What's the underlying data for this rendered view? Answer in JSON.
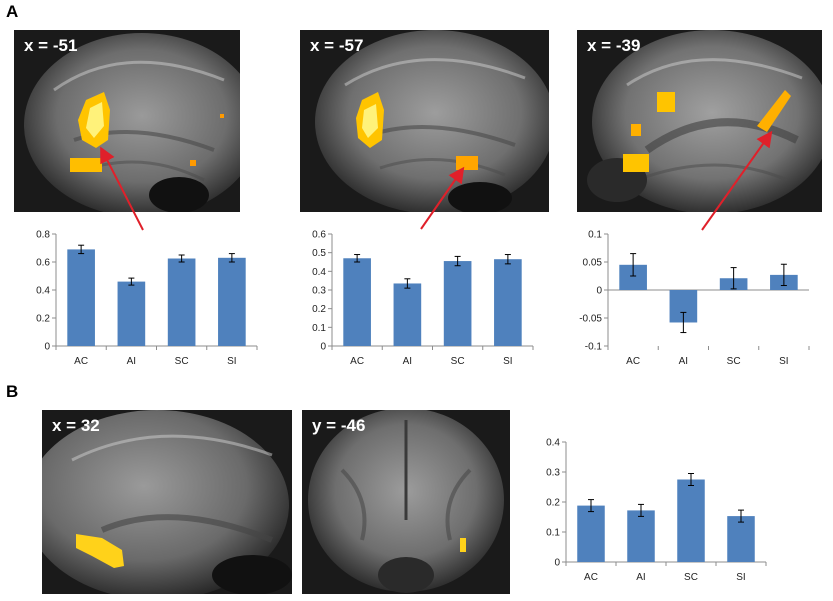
{
  "panels": {
    "a": {
      "letter": "A"
    },
    "b": {
      "letter": "B"
    }
  },
  "slices": [
    {
      "label": "x = -51"
    },
    {
      "label": "x = -57"
    },
    {
      "label": "x = -39"
    },
    {
      "label": "x = 32"
    },
    {
      "label": "y = -46"
    }
  ],
  "colors": {
    "bar": "#4f81bd",
    "arrow": "#e0202a",
    "activation": "#ffd21a"
  },
  "chart_data": [
    {
      "type": "bar",
      "categories": [
        "AC",
        "AI",
        "SC",
        "SI"
      ],
      "values": [
        0.69,
        0.46,
        0.625,
        0.63
      ],
      "errors": [
        0.03,
        0.025,
        0.025,
        0.03
      ],
      "ylim": [
        0,
        0.8
      ],
      "yticks": [
        "0",
        "0.2",
        "0.4",
        "0.6",
        "0.8"
      ],
      "ytick_values": [
        0,
        0.2,
        0.4,
        0.6,
        0.8
      ]
    },
    {
      "type": "bar",
      "categories": [
        "AC",
        "AI",
        "SC",
        "SI"
      ],
      "values": [
        0.47,
        0.335,
        0.455,
        0.465
      ],
      "errors": [
        0.02,
        0.025,
        0.025,
        0.025
      ],
      "ylim": [
        0,
        0.6
      ],
      "yticks": [
        "0",
        "0.1",
        "0.2",
        "0.3",
        "0.4",
        "0.5",
        "0.6"
      ],
      "ytick_values": [
        0,
        0.1,
        0.2,
        0.3,
        0.4,
        0.5,
        0.6
      ]
    },
    {
      "type": "bar",
      "categories": [
        "AC",
        "AI",
        "SC",
        "SI"
      ],
      "values": [
        0.045,
        -0.058,
        0.021,
        0.027
      ],
      "errors": [
        0.02,
        0.018,
        0.019,
        0.019
      ],
      "ylim": [
        -0.1,
        0.1
      ],
      "yticks": [
        "-0.1",
        "-0.05",
        "0",
        "0.05",
        "0.1"
      ],
      "ytick_values": [
        -0.1,
        -0.05,
        0,
        0.05,
        0.1
      ]
    },
    {
      "type": "bar",
      "categories": [
        "AC",
        "AI",
        "SC",
        "SI"
      ],
      "values": [
        0.188,
        0.172,
        0.275,
        0.153
      ],
      "errors": [
        0.02,
        0.02,
        0.02,
        0.02
      ],
      "ylim": [
        0,
        0.4
      ],
      "yticks": [
        "0",
        "0.1",
        "0.2",
        "0.3",
        "0.4"
      ],
      "ytick_values": [
        0,
        0.1,
        0.2,
        0.3,
        0.4
      ]
    }
  ]
}
